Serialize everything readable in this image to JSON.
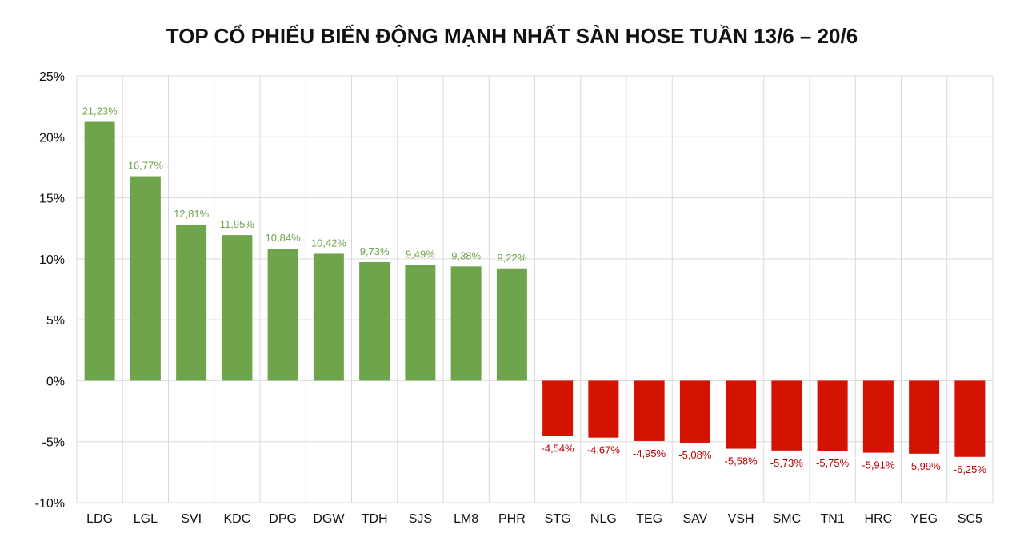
{
  "chart_data": {
    "type": "bar",
    "title": "TOP CỔ PHIẾU BIẾN ĐỘNG MẠNH NHẤT SÀN HOSE TUẦN 13/6 – 20/6",
    "categories": [
      "LDG",
      "LGL",
      "SVI",
      "KDC",
      "DPG",
      "DGW",
      "TDH",
      "SJS",
      "LM8",
      "PHR",
      "STG",
      "NLG",
      "TEG",
      "SAV",
      "VSH",
      "SMC",
      "TN1",
      "HRC",
      "YEG",
      "SC5"
    ],
    "values": [
      21.23,
      16.77,
      12.81,
      11.95,
      10.84,
      10.42,
      9.73,
      9.49,
      9.38,
      9.22,
      -4.54,
      -4.67,
      -4.95,
      -5.08,
      -5.58,
      -5.73,
      -5.75,
      -5.91,
      -5.99,
      -6.25
    ],
    "data_labels": [
      "21,23%",
      "16,77%",
      "12,81%",
      "11,95%",
      "10,84%",
      "10,42%",
      "9,73%",
      "9,49%",
      "9,38%",
      "9,22%",
      "-4,54%",
      "-4,67%",
      "-4,95%",
      "-5,08%",
      "-5,58%",
      "-5,73%",
      "-5,75%",
      "-5,91%",
      "-5,99%",
      "-6,25%"
    ],
    "ylim": [
      -10,
      25
    ],
    "yticks": [
      25,
      20,
      15,
      10,
      5,
      0,
      -5,
      -10
    ],
    "ytick_labels": [
      "25%",
      "20%",
      "15%",
      "10%",
      "5%",
      "0%",
      "-5%",
      "-10%"
    ],
    "xlabel": "",
    "ylabel": "",
    "grid": true,
    "legend": "none",
    "colors": {
      "positive": "#6ea44a",
      "negative": "#d41200",
      "positive_label": "#6ea44a",
      "negative_label": "#c00000",
      "grid": "#d9d9d9"
    }
  }
}
